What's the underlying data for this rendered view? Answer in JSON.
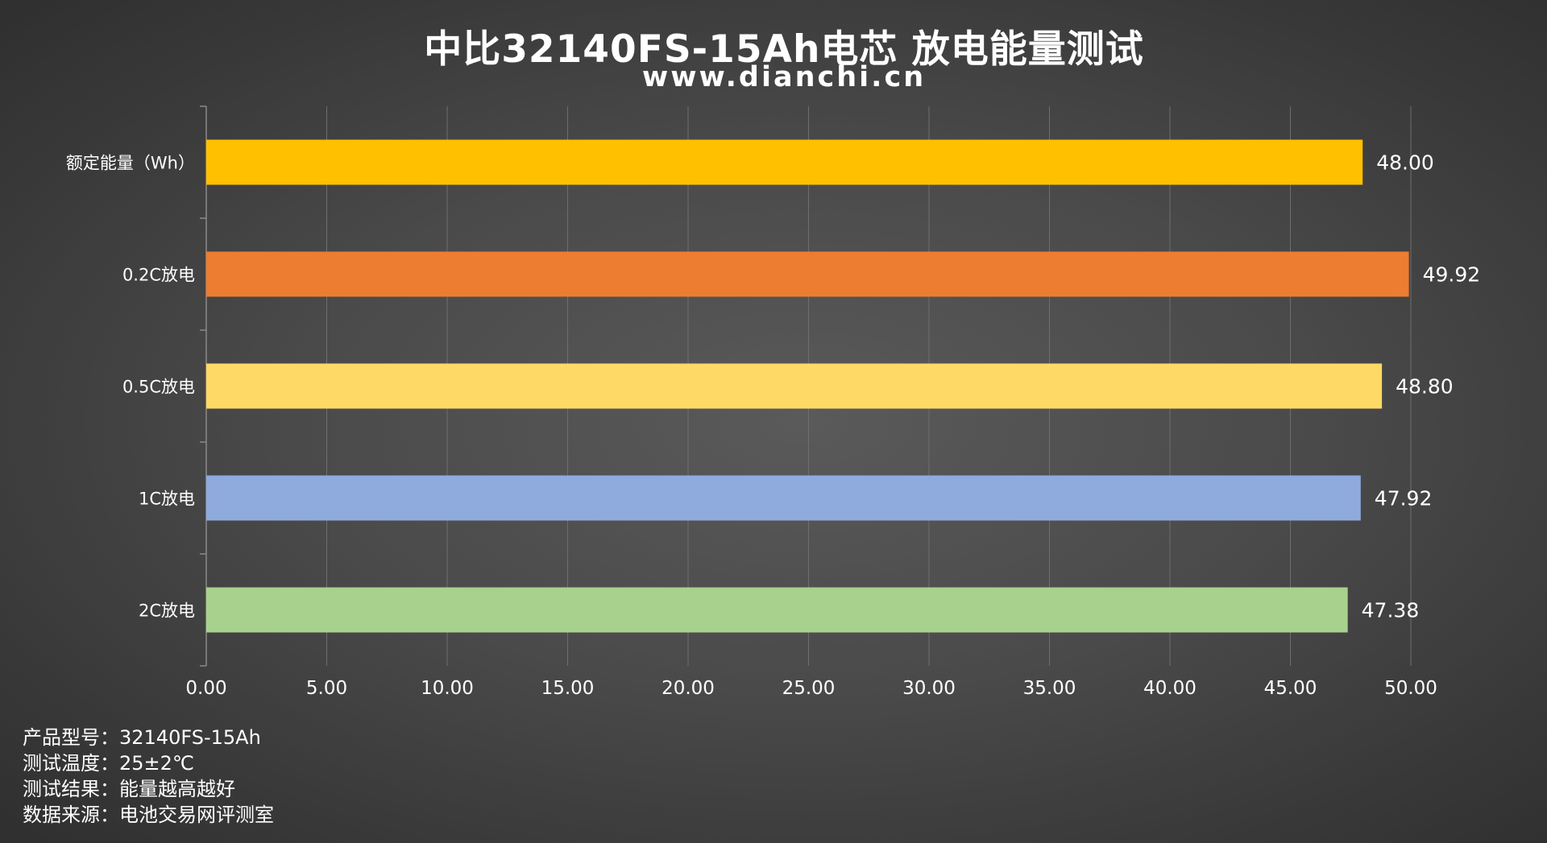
{
  "chart_data": {
    "type": "bar",
    "orientation": "horizontal",
    "title": "中比32140FS-15Ah电芯 放电能量测试",
    "subtitle": "www.dianchi.cn",
    "categories": [
      "额定能量（Wh）",
      "0.2C放电",
      "0.5C放电",
      "1C放电",
      "2C放电"
    ],
    "values": [
      48.0,
      49.92,
      48.8,
      47.92,
      47.38
    ],
    "value_labels": [
      "48.00",
      "49.92",
      "48.80",
      "47.92",
      "47.38"
    ],
    "bar_colors": [
      "#ffc000",
      "#ed7d31",
      "#ffd966",
      "#8faadc",
      "#a9d18e"
    ],
    "xlim": [
      0,
      50
    ],
    "x_ticks": [
      0,
      5,
      10,
      15,
      20,
      25,
      30,
      35,
      40,
      45,
      50
    ],
    "x_tick_labels": [
      "0.00",
      "5.00",
      "10.00",
      "15.00",
      "20.00",
      "25.00",
      "30.00",
      "35.00",
      "40.00",
      "45.00",
      "50.00"
    ],
    "grid": "vertical",
    "legend": "none"
  },
  "notes": [
    {
      "label": "产品型号：",
      "value": "32140FS-15Ah"
    },
    {
      "label": "测试温度：",
      "value": "25±2℃"
    },
    {
      "label": "测试结果：",
      "value": "能量越高越好"
    },
    {
      "label": "数据来源：",
      "value": "电池交易网评测室"
    }
  ]
}
